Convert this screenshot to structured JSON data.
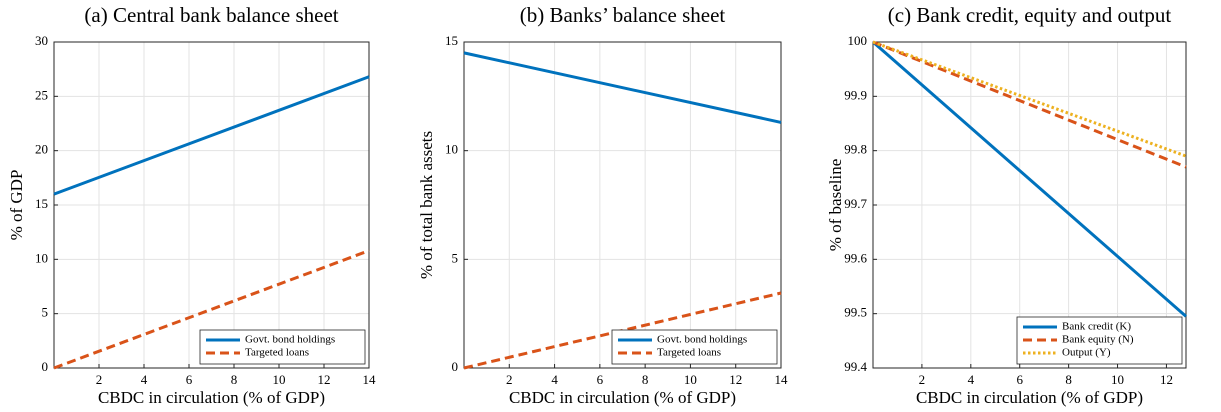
{
  "chart_data": [
    {
      "type": "line",
      "title": "(a) Central bank balance sheet",
      "xlabel": "CBDC in circulation (% of GDP)",
      "ylabel": "% of GDP",
      "x": [
        0,
        14
      ],
      "xlim": [
        0,
        14
      ],
      "xticks": [
        2,
        4,
        6,
        8,
        10,
        12,
        14
      ],
      "ylim": [
        0,
        30
      ],
      "yticks": [
        0,
        5,
        10,
        15,
        20,
        25,
        30
      ],
      "grid": true,
      "legend": "lower right",
      "series": [
        {
          "name": "Govt. bond holdings",
          "color": "#0072bd",
          "linestyle": "solid",
          "values": [
            16,
            26.8
          ]
        },
        {
          "name": "Targeted loans",
          "color": "#d95319",
          "linestyle": "dashed",
          "values": [
            0,
            10.8
          ]
        }
      ]
    },
    {
      "type": "line",
      "title": "(b) Banks’ balance sheet",
      "xlabel": "CBDC in circulation (% of GDP)",
      "ylabel": "% of total bank assets",
      "x": [
        0,
        14
      ],
      "xlim": [
        0,
        14
      ],
      "xticks": [
        2,
        4,
        6,
        8,
        10,
        12,
        14
      ],
      "ylim": [
        0,
        15
      ],
      "yticks": [
        0,
        5,
        10,
        15
      ],
      "grid": true,
      "legend": "lower right",
      "series": [
        {
          "name": "Govt. bond holdings",
          "color": "#0072bd",
          "linestyle": "solid",
          "values": [
            14.5,
            11.3
          ]
        },
        {
          "name": "Targeted loans",
          "color": "#d95319",
          "linestyle": "dashed",
          "values": [
            0,
            3.45
          ]
        }
      ]
    },
    {
      "type": "line",
      "title": "(c) Bank credit, equity and output",
      "xlabel": "CBDC in circulation (% of GDP)",
      "ylabel": "% of baseline",
      "x": [
        0,
        12.8
      ],
      "xlim": [
        0,
        12.8
      ],
      "xticks": [
        2,
        4,
        6,
        8,
        10,
        12
      ],
      "ylim": [
        99.4,
        100
      ],
      "yticks": [
        99.4,
        99.5,
        99.6,
        99.7,
        99.8,
        99.9,
        100
      ],
      "grid": true,
      "legend": "lower right",
      "series": [
        {
          "name": "Bank credit (K)",
          "color": "#0072bd",
          "linestyle": "solid",
          "values": [
            100,
            99.495
          ]
        },
        {
          "name": "Bank equity (N)",
          "color": "#d95319",
          "linestyle": "dashed",
          "values": [
            100,
            99.77
          ]
        },
        {
          "name": "Output (Y)",
          "color": "#edb120",
          "linestyle": "dotted",
          "values": [
            100,
            99.79
          ]
        }
      ]
    }
  ]
}
